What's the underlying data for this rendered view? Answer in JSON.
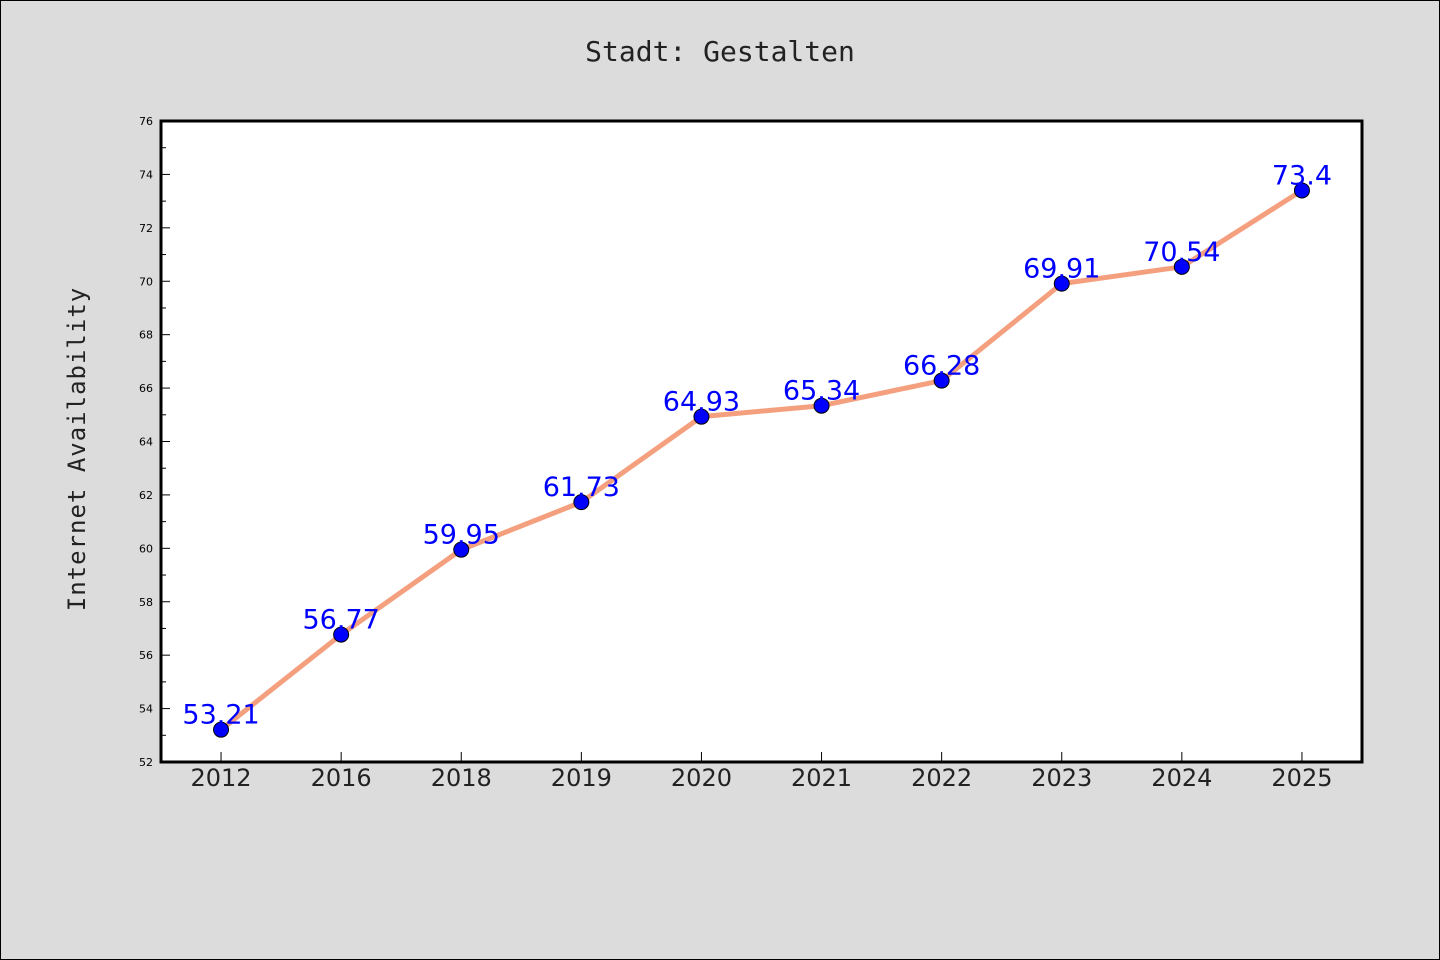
{
  "chart_data": {
    "type": "line",
    "title": "Stadt: Gestalten",
    "xlabel": "",
    "ylabel": "Internet Availability",
    "categories": [
      "2012",
      "2016",
      "2018",
      "2019",
      "2020",
      "2021",
      "2022",
      "2023",
      "2024",
      "2025"
    ],
    "series": [
      {
        "values": [
          53.21,
          56.77,
          59.95,
          61.73,
          64.93,
          65.34,
          66.28,
          69.91,
          70.54,
          73.4
        ],
        "labels": [
          "53.21",
          "56.77",
          "59.95",
          "61.73",
          "64.93",
          "65.34",
          "66.28",
          "69.91",
          "70.54",
          "73.4"
        ],
        "line_color": "#f4a07e",
        "marker_color": "#0000ff",
        "label_color": "#0000ff"
      }
    ],
    "ylim": [
      52,
      76
    ],
    "yticks": [
      52,
      54,
      56,
      58,
      60,
      62,
      64,
      66,
      68,
      70,
      72,
      74,
      76
    ],
    "grid": false,
    "legend": "none",
    "background": "#dcdcdc",
    "plot_background": "#ffffff"
  }
}
